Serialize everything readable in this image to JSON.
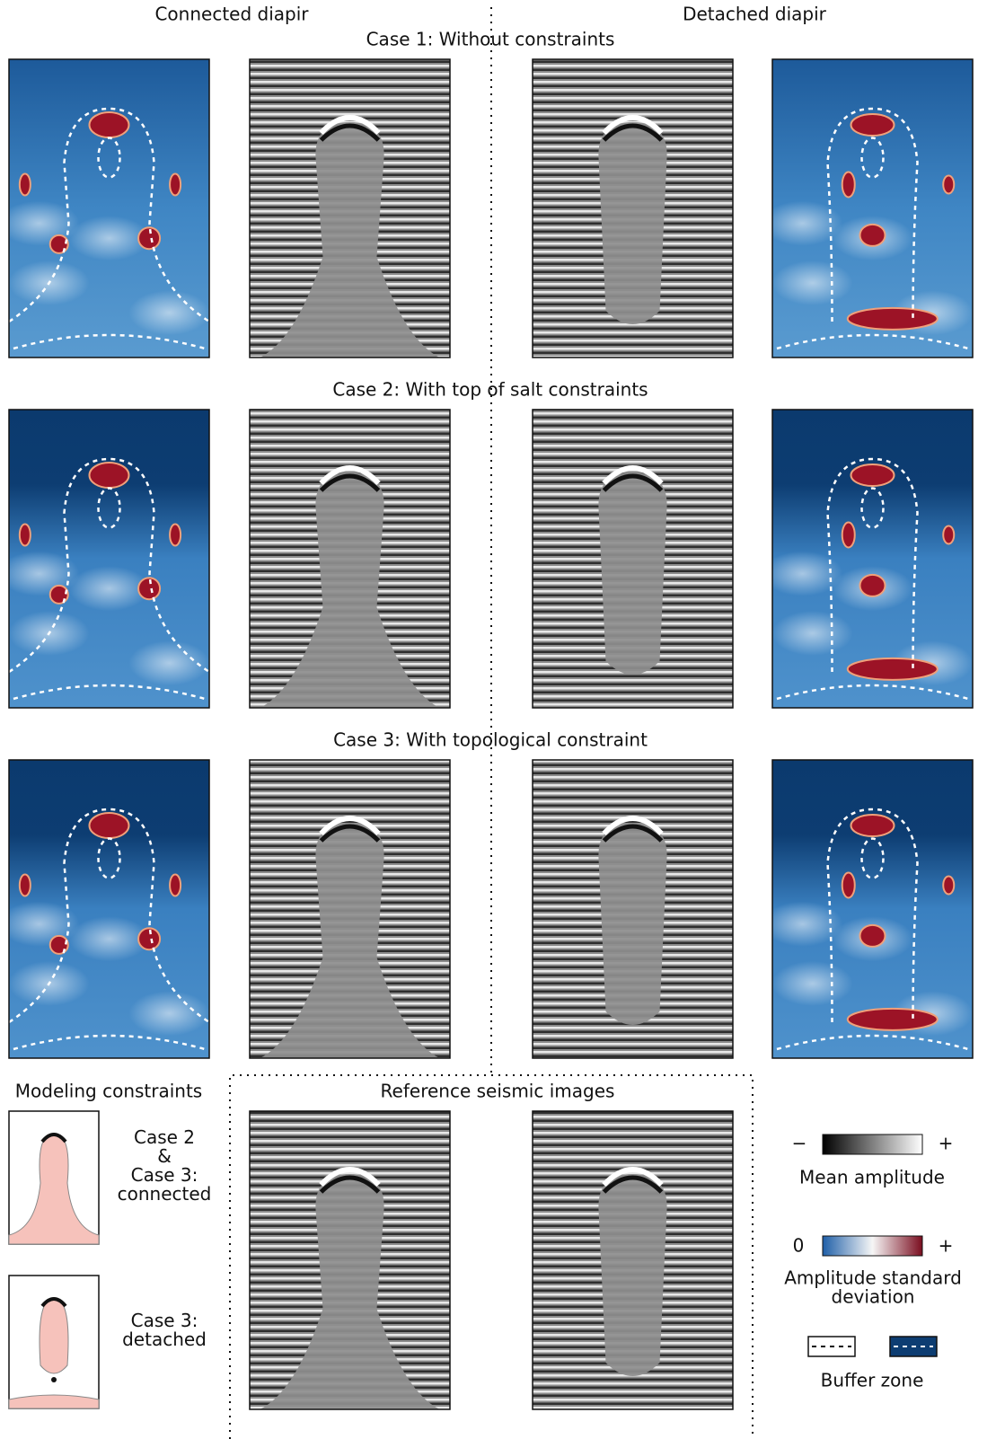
{
  "headers": {
    "left": "Connected diapir",
    "right": "Detached diapir"
  },
  "cases": [
    {
      "title": "Case 1: Without constraints"
    },
    {
      "title": "Case 2: With top of salt constraints"
    },
    {
      "title": "Case 3: With topological constraint"
    }
  ],
  "modeling": {
    "title": "Modeling constraints",
    "items": [
      {
        "label_lines": [
          "Case 2",
          "&",
          "Case 3:",
          "connected"
        ]
      },
      {
        "label_lines": [
          "Case 3:",
          "detached"
        ]
      }
    ]
  },
  "reference": {
    "title": "Reference seismic images"
  },
  "legend": {
    "mean": {
      "minus": "−",
      "plus": "+",
      "label": "Mean amplitude"
    },
    "std": {
      "zero": "0",
      "plus": "+",
      "label_lines": [
        "Amplitude standard",
        "deviation"
      ]
    },
    "buffer": "Buffer zone"
  }
}
